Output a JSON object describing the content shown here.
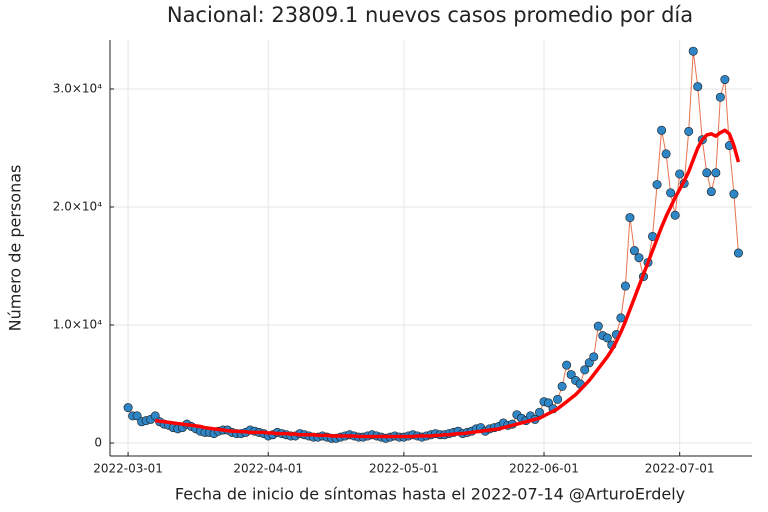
{
  "chart_data": {
    "type": "line",
    "title": "Nacional:  23809.1 nuevos casos promedio por día",
    "xlabel": "Fecha de inicio de síntomas hasta el 2022-07-14 @ArturoErdely",
    "ylabel": "Número de personas",
    "x": [
      "2022-03-01",
      "2022-03-02",
      "2022-03-03",
      "2022-03-04",
      "2022-03-05",
      "2022-03-06",
      "2022-03-07",
      "2022-03-08",
      "2022-03-09",
      "2022-03-10",
      "2022-03-11",
      "2022-03-12",
      "2022-03-13",
      "2022-03-14",
      "2022-03-15",
      "2022-03-16",
      "2022-03-17",
      "2022-03-18",
      "2022-03-19",
      "2022-03-20",
      "2022-03-21",
      "2022-03-22",
      "2022-03-23",
      "2022-03-24",
      "2022-03-25",
      "2022-03-26",
      "2022-03-27",
      "2022-03-28",
      "2022-03-29",
      "2022-03-30",
      "2022-03-31",
      "2022-04-01",
      "2022-04-02",
      "2022-04-03",
      "2022-04-04",
      "2022-04-05",
      "2022-04-06",
      "2022-04-07",
      "2022-04-08",
      "2022-04-09",
      "2022-04-10",
      "2022-04-11",
      "2022-04-12",
      "2022-04-13",
      "2022-04-14",
      "2022-04-15",
      "2022-04-16",
      "2022-04-17",
      "2022-04-18",
      "2022-04-19",
      "2022-04-20",
      "2022-04-21",
      "2022-04-22",
      "2022-04-23",
      "2022-04-24",
      "2022-04-25",
      "2022-04-26",
      "2022-04-27",
      "2022-04-28",
      "2022-04-29",
      "2022-04-30",
      "2022-05-01",
      "2022-05-02",
      "2022-05-03",
      "2022-05-04",
      "2022-05-05",
      "2022-05-06",
      "2022-05-07",
      "2022-05-08",
      "2022-05-09",
      "2022-05-10",
      "2022-05-11",
      "2022-05-12",
      "2022-05-13",
      "2022-05-14",
      "2022-05-15",
      "2022-05-16",
      "2022-05-17",
      "2022-05-18",
      "2022-05-19",
      "2022-05-20",
      "2022-05-21",
      "2022-05-22",
      "2022-05-23",
      "2022-05-24",
      "2022-05-25",
      "2022-05-26",
      "2022-05-27",
      "2022-05-28",
      "2022-05-29",
      "2022-05-30",
      "2022-05-31",
      "2022-06-01",
      "2022-06-02",
      "2022-06-03",
      "2022-06-04",
      "2022-06-05",
      "2022-06-06",
      "2022-06-07",
      "2022-06-08",
      "2022-06-09",
      "2022-06-10",
      "2022-06-11",
      "2022-06-12",
      "2022-06-13",
      "2022-06-14",
      "2022-06-15",
      "2022-06-16",
      "2022-06-17",
      "2022-06-18",
      "2022-06-19",
      "2022-06-20",
      "2022-06-21",
      "2022-06-22",
      "2022-06-23",
      "2022-06-24",
      "2022-06-25",
      "2022-06-26",
      "2022-06-27",
      "2022-06-28",
      "2022-06-29",
      "2022-06-30",
      "2022-07-01",
      "2022-07-02",
      "2022-07-03",
      "2022-07-04",
      "2022-07-05",
      "2022-07-06",
      "2022-07-07",
      "2022-07-08",
      "2022-07-09",
      "2022-07-10",
      "2022-07-11",
      "2022-07-12",
      "2022-07-13",
      "2022-07-14"
    ],
    "series": [
      {
        "color": "#2f86c6",
        "line_color": "#e8734f",
        "markers": true,
        "values": [
          3000,
          2300,
          2300,
          1800,
          1900,
          2000,
          2300,
          1800,
          1600,
          1500,
          1300,
          1200,
          1300,
          1600,
          1400,
          1200,
          1000,
          900,
          900,
          800,
          1000,
          1100,
          1100,
          900,
          800,
          800,
          900,
          1100,
          1000,
          900,
          800,
          600,
          700,
          900,
          800,
          700,
          600,
          600,
          800,
          700,
          600,
          500,
          500,
          600,
          500,
          400,
          400,
          500,
          600,
          700,
          600,
          500,
          500,
          600,
          700,
          600,
          500,
          400,
          500,
          600,
          500,
          500,
          600,
          700,
          600,
          500,
          600,
          700,
          800,
          700,
          700,
          800,
          900,
          1000,
          800,
          900,
          1000,
          1200,
          1300,
          1000,
          1200,
          1300,
          1400,
          1700,
          1500,
          1600,
          2400,
          2100,
          1900,
          2300,
          2000,
          2600,
          3500,
          3400,
          2900,
          3700,
          4800,
          6600,
          5800,
          5300,
          5000,
          6200,
          6800,
          7300,
          9900,
          9100,
          8900,
          8300,
          9200,
          10600,
          13300,
          19100,
          16300,
          15700,
          14100,
          15300,
          17500,
          21900,
          26500,
          24500,
          21200,
          19300,
          22800,
          22000,
          26400,
          33200,
          30200,
          25700,
          22900,
          21300,
          22900,
          29300,
          30800,
          25200,
          21100,
          16100
        ]
      },
      {
        "color": "#ff0000",
        "markers": false,
        "values": [
          null,
          null,
          null,
          null,
          null,
          null,
          1900,
          1850,
          1800,
          1750,
          1700,
          1650,
          1600,
          1550,
          1500,
          1450,
          1400,
          1300,
          1250,
          1200,
          1150,
          1100,
          1050,
          1000,
          1000,
          950,
          950,
          900,
          900,
          900,
          900,
          850,
          850,
          800,
          800,
          800,
          750,
          750,
          700,
          700,
          700,
          700,
          650,
          650,
          650,
          600,
          600,
          600,
          600,
          600,
          600,
          550,
          550,
          550,
          550,
          550,
          550,
          550,
          550,
          550,
          550,
          550,
          550,
          550,
          600,
          600,
          600,
          600,
          650,
          650,
          700,
          700,
          750,
          800,
          800,
          850,
          900,
          950,
          1000,
          1050,
          1100,
          1150,
          1200,
          1300,
          1400,
          1500,
          1600,
          1700,
          1800,
          1900,
          2000,
          2100,
          2300,
          2500,
          2700,
          2900,
          3200,
          3500,
          3800,
          4100,
          4500,
          4900,
          5300,
          5800,
          6300,
          6800,
          7300,
          7900,
          8600,
          9400,
          10300,
          11300,
          12300,
          13300,
          14300,
          15300,
          16300,
          17300,
          18300,
          19200,
          20000,
          20800,
          21500,
          22200,
          23000,
          24000,
          25000,
          25700,
          26100,
          26200,
          26000,
          26300,
          26500,
          26200,
          25200,
          23809.1
        ]
      }
    ],
    "xlim": [
      "2022-02-25",
      "2022-07-17"
    ],
    "xticks": [
      "2022-03-01",
      "2022-04-01",
      "2022-05-01",
      "2022-06-01",
      "2022-07-01"
    ],
    "ylim": [
      -1100,
      34150
    ],
    "yticks": [
      0,
      {
        "value": 10000,
        "label": "1.0×10⁴"
      },
      {
        "value": 20000,
        "label": "2.0×10⁴"
      },
      {
        "value": 30000,
        "label": "3.0×10⁴"
      }
    ],
    "grid": true
  }
}
